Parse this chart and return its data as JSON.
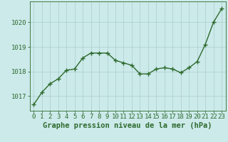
{
  "x": [
    0,
    1,
    2,
    3,
    4,
    5,
    6,
    7,
    8,
    9,
    10,
    11,
    12,
    13,
    14,
    15,
    16,
    17,
    18,
    19,
    20,
    21,
    22,
    23
  ],
  "y": [
    1016.65,
    1017.15,
    1017.5,
    1017.7,
    1018.05,
    1018.1,
    1018.55,
    1018.75,
    1018.75,
    1018.75,
    1018.45,
    1018.35,
    1018.25,
    1017.9,
    1017.9,
    1018.1,
    1018.15,
    1018.1,
    1017.95,
    1018.15,
    1018.4,
    1019.1,
    1020.0,
    1020.55
  ],
  "line_color": "#2d6a2d",
  "marker_color": "#2d6a2d",
  "bg_color": "#cceaea",
  "grid_color": "#aacccc",
  "xlabel": "Graphe pression niveau de la mer (hPa)",
  "ylabel_ticks": [
    1017,
    1018,
    1019,
    1020
  ],
  "xlim": [
    -0.5,
    23.5
  ],
  "ylim": [
    1016.4,
    1020.85
  ],
  "xlabel_fontsize": 7.5,
  "tick_fontsize": 6.5,
  "line_width": 1.0,
  "marker_size": 4
}
